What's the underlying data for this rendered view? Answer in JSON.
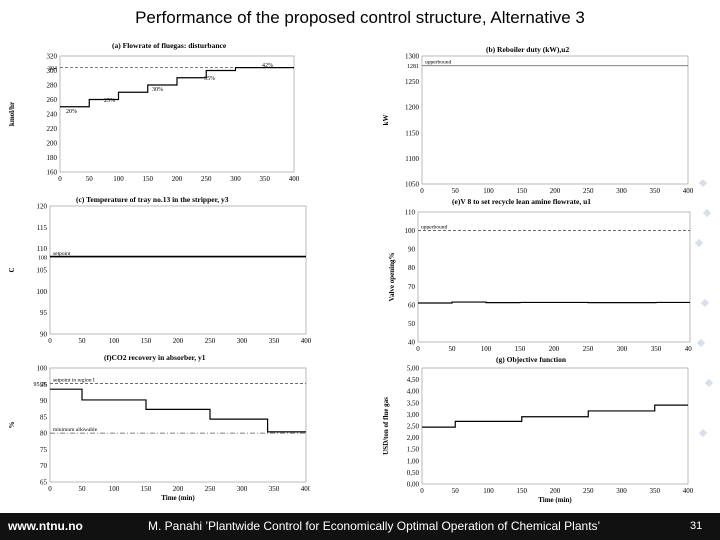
{
  "slide": {
    "title": "Performance of the proposed control structure, Alternative 3",
    "footer_url": "www.ntnu.no",
    "footer_citation": "M. Panahi ’Plantwide Control for Economically Optimal Operation of Chemical Plants’",
    "page_number": "31",
    "colors": {
      "footer_bg": "#111111",
      "line": "#000000",
      "ref_line": "#555555",
      "frame": "#aaaaaa"
    }
  },
  "chart_data": [
    {
      "id": "a",
      "type": "line",
      "title": "(a) Flowrate of fluegas: disturbance",
      "xlabel": "",
      "ylabel": "kmol/hr",
      "xlim": [
        0,
        400
      ],
      "ylim": [
        160,
        320
      ],
      "xticks": [
        "0",
        "50",
        "100",
        "150",
        "200",
        "250",
        "300",
        "350",
        "400"
      ],
      "yticks": [
        "160",
        "180",
        "200",
        "220",
        "240",
        "260",
        "280",
        "300",
        "320"
      ],
      "extra_ytick": "304",
      "series": [
        {
          "name": "fluegas",
          "steps": [
            [
              0,
              250
            ],
            [
              50,
              260
            ],
            [
              100,
              270
            ],
            [
              150,
              280
            ],
            [
              200,
              290
            ],
            [
              250,
              300
            ],
            [
              300,
              304
            ]
          ]
        }
      ],
      "ref_lines": [
        {
          "label": "",
          "value": 304,
          "style": "dashed"
        }
      ],
      "annotations": [
        "20%",
        "25%",
        "30%",
        "35%",
        "42%"
      ]
    },
    {
      "id": "b",
      "type": "line",
      "title": "(b) Reboiler duty (kW),u2",
      "xlabel": "",
      "ylabel": "kW",
      "xlim": [
        0,
        400
      ],
      "ylim": [
        1050,
        1300
      ],
      "xticks": [
        "0",
        "50",
        "100",
        "150",
        "200",
        "250",
        "300",
        "350",
        "400"
      ],
      "yticks": [
        "1050",
        "1100",
        "1150",
        "1200",
        "1250",
        "1300"
      ],
      "extra_ytick": "1281",
      "ref_lines": [
        {
          "label": "upperbound",
          "value": 1281,
          "style": "solid"
        }
      ],
      "series": []
    },
    {
      "id": "c",
      "type": "line",
      "title": "(c) Temperature of tray no.13 in the stripper, y3",
      "xlabel": "",
      "ylabel": "C",
      "xlim": [
        0,
        400
      ],
      "ylim": [
        90,
        120
      ],
      "xticks": [
        "0",
        "50",
        "100",
        "150",
        "200",
        "250",
        "300",
        "350",
        "400"
      ],
      "yticks": [
        "90",
        "95",
        "100",
        "105",
        "110",
        "115",
        "120"
      ],
      "extra_ytick": "108",
      "ref_lines": [
        {
          "label": "setpoint",
          "value": 108,
          "style": "solid"
        }
      ],
      "series": [
        {
          "name": "T13",
          "steps": [
            [
              0,
              108.2
            ]
          ]
        }
      ]
    },
    {
      "id": "e",
      "type": "line",
      "title": "(e)V 8 to set recycle lean amine flowrate, u1",
      "xlabel": "",
      "ylabel": "Valve opening%",
      "xlim": [
        0,
        400
      ],
      "ylim": [
        40,
        110
      ],
      "xticks": [
        "0",
        "50",
        "100",
        "150",
        "200",
        "250",
        "300",
        "350",
        "400"
      ],
      "yticks": [
        "40",
        "50",
        "60",
        "70",
        "80",
        "90",
        "100",
        "110"
      ],
      "ref_lines": [
        {
          "label": "upperbound",
          "value": 100,
          "style": "dashed"
        }
      ],
      "series": [
        {
          "name": "valve",
          "steps": [
            [
              0,
              61
            ],
            [
              50,
              61.5
            ],
            [
              100,
              61.2
            ],
            [
              150,
              61.3
            ],
            [
              250,
              61.2
            ],
            [
              350,
              61.3
            ]
          ]
        }
      ]
    },
    {
      "id": "f",
      "type": "line",
      "title": "(f)CO2 recovery in absorber, y1",
      "xlabel": "Time (min)",
      "ylabel": "%",
      "xlim": [
        0,
        400
      ],
      "ylim": [
        65,
        100
      ],
      "xticks": [
        "0",
        "50",
        "100",
        "150",
        "200",
        "250",
        "300",
        "350",
        "400"
      ],
      "yticks": [
        "65",
        "70",
        "75",
        "80",
        "85",
        "90",
        "95",
        "100"
      ],
      "extra_ytick": "95.26",
      "ref_lines": [
        {
          "label": "setpoint in region I",
          "value": 95.26,
          "style": "dashed"
        },
        {
          "label": "minimum allowable",
          "value": 80,
          "style": "dashdot"
        }
      ],
      "series": [
        {
          "name": "recovery",
          "steps": [
            [
              0,
              93.5
            ],
            [
              50,
              90.2
            ],
            [
              150,
              87.3
            ],
            [
              250,
              84.3
            ],
            [
              340,
              80.4
            ]
          ]
        }
      ]
    },
    {
      "id": "g",
      "type": "line",
      "title": "(g) Objective function",
      "xlabel": "Time (min)",
      "ylabel": "USD/ton of flue gas",
      "xlim": [
        0,
        400
      ],
      "ylim": [
        0,
        5
      ],
      "xticks": [
        "0",
        "50",
        "100",
        "150",
        "200",
        "250",
        "300",
        "350",
        "400"
      ],
      "yticks": [
        "0,00",
        "0,50",
        "1,00",
        "1,50",
        "2,00",
        "2,50",
        "3,00",
        "3,50",
        "4,00",
        "4,50",
        "5,00"
      ],
      "ref_lines": [],
      "series": [
        {
          "name": "J",
          "steps": [
            [
              0,
              2.45
            ],
            [
              50,
              2.7
            ],
            [
              150,
              2.9
            ],
            [
              250,
              3.15
            ],
            [
              350,
              3.4
            ]
          ]
        }
      ]
    }
  ]
}
